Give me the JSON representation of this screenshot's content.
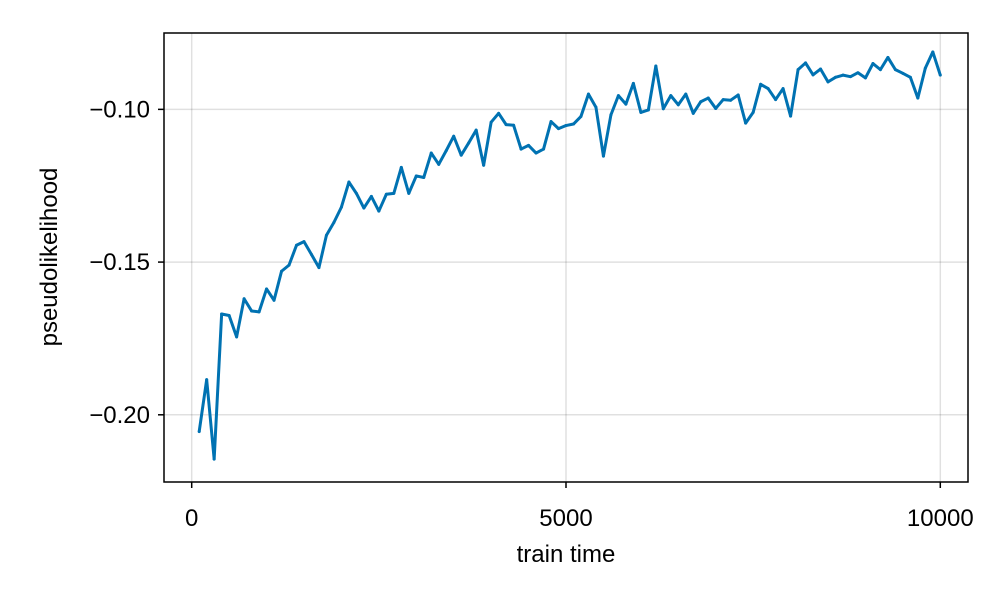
{
  "chart_data": {
    "type": "line",
    "xlabel": "train time",
    "ylabel": "pseudolikelihood",
    "xlim": [
      -370,
      10370
    ],
    "ylim": [
      -0.222,
      -0.075
    ],
    "grid": true,
    "x_ticks": [
      {
        "value": 0,
        "label": "0"
      },
      {
        "value": 5000,
        "label": "5000"
      },
      {
        "value": 10000,
        "label": "10000"
      }
    ],
    "y_ticks": [
      {
        "value": -0.2,
        "label": "−0.20"
      },
      {
        "value": -0.15,
        "label": "−0.15"
      },
      {
        "value": -0.1,
        "label": "−0.10"
      }
    ],
    "series": [
      {
        "color": "#0072b2",
        "x": [
          100,
          200,
          300,
          400,
          500,
          600,
          700,
          800,
          900,
          1000,
          1100,
          1200,
          1300,
          1400,
          1500,
          1600,
          1700,
          1800,
          1900,
          2000,
          2100,
          2200,
          2300,
          2400,
          2500,
          2600,
          2700,
          2800,
          2900,
          3000,
          3100,
          3200,
          3300,
          3400,
          3500,
          3600,
          3700,
          3800,
          3900,
          4000,
          4100,
          4200,
          4300,
          4400,
          4500,
          4600,
          4700,
          4800,
          4900,
          5000,
          5100,
          5200,
          5300,
          5400,
          5500,
          5600,
          5700,
          5800,
          5900,
          6000,
          6100,
          6200,
          6300,
          6400,
          6500,
          6600,
          6700,
          6800,
          6900,
          7000,
          7100,
          7200,
          7300,
          7400,
          7500,
          7600,
          7700,
          7800,
          7900,
          8000,
          8100,
          8200,
          8300,
          8400,
          8500,
          8600,
          8700,
          8800,
          8900,
          9000,
          9100,
          9200,
          9300,
          9400,
          9500,
          9600,
          9700,
          9800,
          9900,
          10000
        ],
        "y": [
          -0.2055,
          -0.1885,
          -0.2145,
          -0.167,
          -0.1675,
          -0.1745,
          -0.162,
          -0.166,
          -0.1663,
          -0.1588,
          -0.1625,
          -0.153,
          -0.151,
          -0.1445,
          -0.1433,
          -0.1475,
          -0.1518,
          -0.1412,
          -0.137,
          -0.132,
          -0.1238,
          -0.1275,
          -0.1323,
          -0.1285,
          -0.1333,
          -0.1278,
          -0.1275,
          -0.119,
          -0.1275,
          -0.1218,
          -0.1223,
          -0.1143,
          -0.118,
          -0.1135,
          -0.1088,
          -0.115,
          -0.111,
          -0.1068,
          -0.1183,
          -0.1042,
          -0.1013,
          -0.105,
          -0.1052,
          -0.113,
          -0.1118,
          -0.1143,
          -0.113,
          -0.104,
          -0.1063,
          -0.1053,
          -0.1048,
          -0.1023,
          -0.095,
          -0.0993,
          -0.1153,
          -0.1018,
          -0.0955,
          -0.0983,
          -0.0915,
          -0.101,
          -0.1002,
          -0.0858,
          -0.0998,
          -0.0955,
          -0.0985,
          -0.095,
          -0.1013,
          -0.0975,
          -0.0963,
          -0.0997,
          -0.0968,
          -0.097,
          -0.0953,
          -0.1045,
          -0.101,
          -0.0918,
          -0.0932,
          -0.0968,
          -0.0932,
          -0.1022,
          -0.087,
          -0.0848,
          -0.0887,
          -0.0868,
          -0.091,
          -0.0895,
          -0.0888,
          -0.0893,
          -0.088,
          -0.0897,
          -0.085,
          -0.087,
          -0.083,
          -0.087,
          -0.0882,
          -0.0895,
          -0.0963,
          -0.0865,
          -0.0812,
          -0.0888
        ]
      }
    ]
  }
}
